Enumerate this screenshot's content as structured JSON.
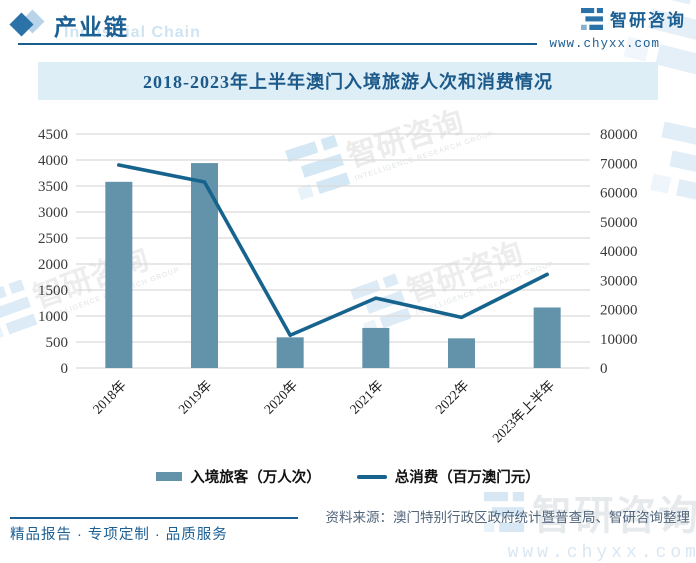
{
  "page": {
    "header": {
      "section_title": "产业链",
      "section_title_en": "Industrial Chain",
      "brand_name": "智研咨询",
      "brand_url": "www.chyxx.com"
    },
    "footer": {
      "tagline": "精品报告 · 专项定制 · 品质服务",
      "source": "资料来源：澳门特别行政区政府统计暨普查局、智研咨询整理"
    },
    "watermark": {
      "brand": "智研咨询",
      "brand_en": "INTELLIGENCE RESEARCH GROUP",
      "url": "www.chyxx.com"
    }
  },
  "chart_data": {
    "type": "bar",
    "title": "2018-2023年上半年澳门入境旅游人次和消费情况",
    "categories": [
      "2018年",
      "2019年",
      "2020年",
      "2021年",
      "2022年",
      "2023年上半年"
    ],
    "series": [
      {
        "name": "入境旅客（万人次）",
        "type": "bar",
        "axis": "left",
        "color": "#6293aa",
        "values": [
          3580.4,
          3940.6,
          589.7,
          770.5,
          570.2,
          1163.7
        ]
      },
      {
        "name": "总消费（百万澳门元）",
        "type": "line",
        "axis": "right",
        "color": "#16648e",
        "values": [
          69400,
          63600,
          11200,
          23900,
          17300,
          32000
        ]
      }
    ],
    "left_axis": {
      "min": 0,
      "max": 4500,
      "step": 500
    },
    "right_axis": {
      "min": 0,
      "max": 80000,
      "step": 10000
    },
    "grid": true,
    "legend_position": "bottom"
  },
  "colors": {
    "brand_blue": "#1c5f93",
    "bar": "#6293aa",
    "line": "#16648e",
    "title_band_bg": "#ddeef7",
    "gridline": "#d9d9d9",
    "axis_text": "#3a3a3a",
    "source_text": "#51657b"
  }
}
